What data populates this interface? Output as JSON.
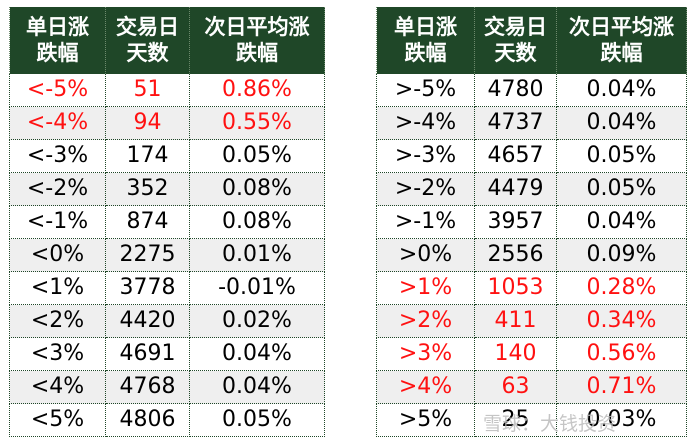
{
  "colors": {
    "header_bg": "#1f4728",
    "highlight": "#ff1111",
    "stripe": "#efefef"
  },
  "left": {
    "headers": [
      "单日涨\n跌幅",
      "交易日\n天数",
      "次日平均涨\n跌幅"
    ],
    "rows": [
      {
        "cond": "<-5%",
        "days": "51",
        "avg": "0.86%",
        "red": true
      },
      {
        "cond": "<-4%",
        "days": "94",
        "avg": "0.55%",
        "red": true
      },
      {
        "cond": "<-3%",
        "days": "174",
        "avg": "0.05%",
        "red": false
      },
      {
        "cond": "<-2%",
        "days": "352",
        "avg": "0.08%",
        "red": false
      },
      {
        "cond": "<-1%",
        "days": "874",
        "avg": "0.08%",
        "red": false
      },
      {
        "cond": "<0%",
        "days": "2275",
        "avg": "0.01%",
        "red": false
      },
      {
        "cond": "<1%",
        "days": "3778",
        "avg": "-0.01%",
        "red": false
      },
      {
        "cond": "<2%",
        "days": "4420",
        "avg": "0.02%",
        "red": false
      },
      {
        "cond": "<3%",
        "days": "4691",
        "avg": "0.04%",
        "red": false
      },
      {
        "cond": "<4%",
        "days": "4768",
        "avg": "0.04%",
        "red": false
      },
      {
        "cond": "<5%",
        "days": "4806",
        "avg": "0.05%",
        "red": false
      }
    ]
  },
  "right": {
    "headers": [
      "单日涨\n跌幅",
      "交易日\n天数",
      "次日平均涨\n跌幅"
    ],
    "rows": [
      {
        "cond": ">-5%",
        "days": "4780",
        "avg": "0.04%",
        "red": false
      },
      {
        "cond": ">-4%",
        "days": "4737",
        "avg": "0.04%",
        "red": false
      },
      {
        "cond": ">-3%",
        "days": "4657",
        "avg": "0.05%",
        "red": false
      },
      {
        "cond": ">-2%",
        "days": "4479",
        "avg": "0.05%",
        "red": false
      },
      {
        "cond": ">-1%",
        "days": "3957",
        "avg": "0.04%",
        "red": false
      },
      {
        "cond": ">0%",
        "days": "2556",
        "avg": "0.09%",
        "red": false
      },
      {
        "cond": ">1%",
        "days": "1053",
        "avg": "0.28%",
        "red": true
      },
      {
        "cond": ">2%",
        "days": "411",
        "avg": "0.34%",
        "red": true
      },
      {
        "cond": ">3%",
        "days": "140",
        "avg": "0.56%",
        "red": true
      },
      {
        "cond": ">4%",
        "days": "63",
        "avg": "0.71%",
        "red": true
      },
      {
        "cond": ">5%",
        "days": "25",
        "avg": "0.03%",
        "red": false
      }
    ]
  },
  "watermark": "雪球：大钱投资"
}
